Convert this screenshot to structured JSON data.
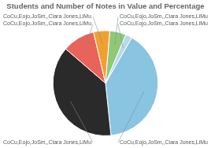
{
  "chart_data": {
    "type": "pie",
    "title": "Students and Number of Notes in Value and Percentage",
    "categories": [
      "CoCu,Eojo,JoSm,,Ciara Jones,LiMu",
      "CoCu,Eojo,JoSm,,Ciara Jones,LiMu",
      "CoCu,Eojo,JoSm,,Ciara Jones,LiMu",
      "CoCu,Eojo,JoSm,,Ciara Jones,LiMu",
      "CoCu,Eojo,JoSm,,Ciara Jones,LiMu",
      "CoCu,Eojo,JoSm,,Ciara Jones,LiMu"
    ],
    "values": [
      40,
      38,
      10,
      5,
      5,
      2
    ],
    "colors": [
      "#89c4e1",
      "#2a2a2a",
      "#e8635a",
      "#f0a030",
      "#90c878",
      "#b8d8f0"
    ]
  }
}
